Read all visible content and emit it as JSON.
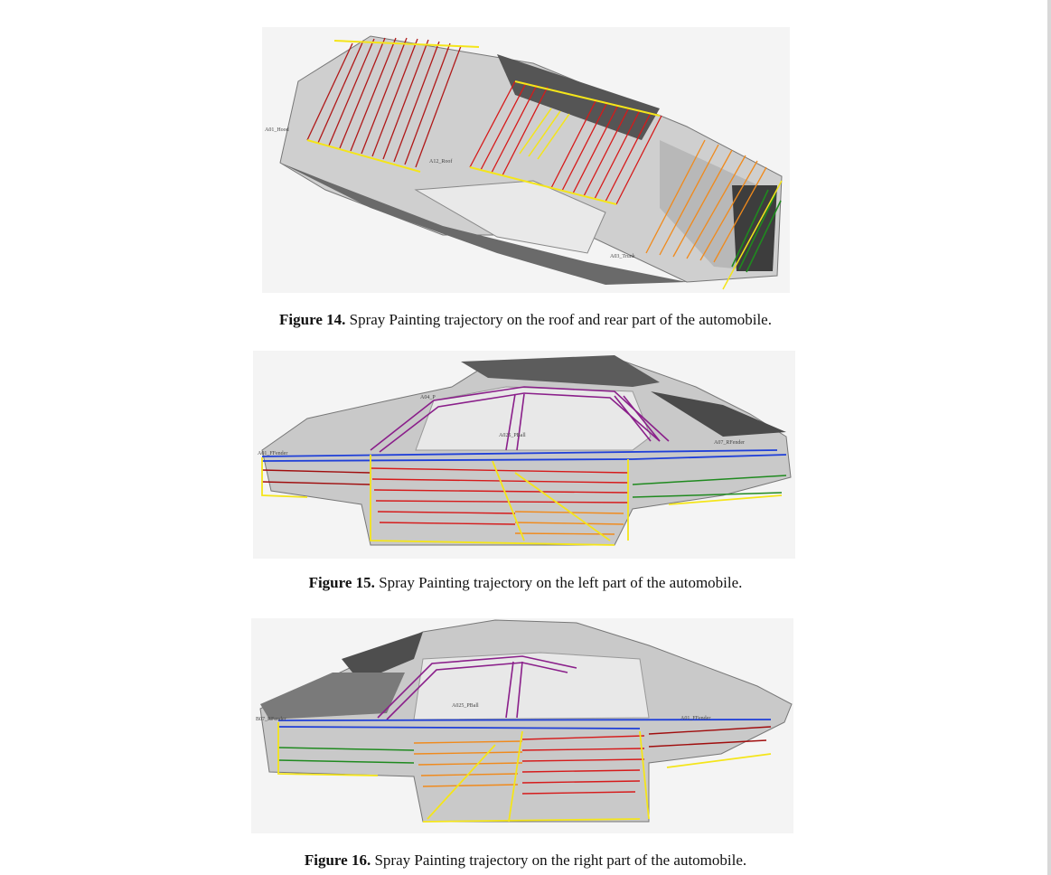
{
  "figures": [
    {
      "number": "Figure 14.",
      "caption": "Spray Painting trajectory on the roof and rear part of the automobile.",
      "labels": {
        "hood": "A01_Hood",
        "roof": "A12_Roof",
        "trunk": "A03_Trunk"
      }
    },
    {
      "number": "Figure 15.",
      "caption": "Spray Painting trajectory on the left part of the automobile.",
      "labels": {
        "front_fender": "A01_FFender",
        "pillar_a": "A04_P",
        "pillar_b": "A025_PBall",
        "rear_fender": "A07_RFender"
      }
    },
    {
      "number": "Figure 16.",
      "caption": "Spray Painting trajectory on the right part of the automobile.",
      "labels": {
        "rear_fender": "B07_RFender",
        "pillar_b": "A025_PBall",
        "front_fender": "A01_FFender"
      }
    }
  ],
  "colors": {
    "red": "#d61a1a",
    "dark_red": "#a00d0d",
    "orange": "#f08a1c",
    "yellow": "#f4e51a",
    "green": "#1f8a1f",
    "blue": "#1f3fd8",
    "purple": "#8a1f8a",
    "body_gray": "#c9c9c9",
    "dark_gray": "#5c5c5c"
  }
}
